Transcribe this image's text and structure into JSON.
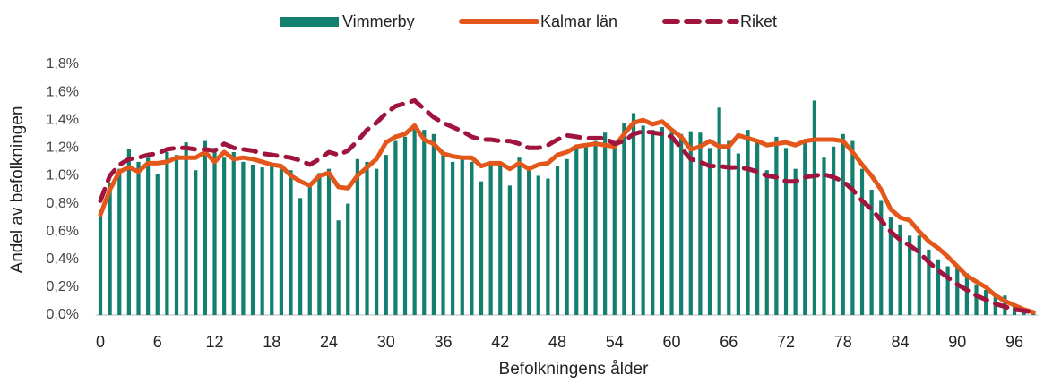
{
  "chart_data": {
    "type": "bar",
    "x_label": "Befolkningens ålder",
    "y_label": "Andel av befolkningen",
    "categories": [
      "0",
      null,
      null,
      null,
      null,
      null,
      "6",
      null,
      null,
      null,
      null,
      null,
      "12",
      null,
      null,
      null,
      null,
      null,
      "18",
      null,
      null,
      null,
      null,
      null,
      "24",
      null,
      null,
      null,
      null,
      null,
      "30",
      null,
      null,
      null,
      null,
      null,
      "36",
      null,
      null,
      null,
      null,
      null,
      "42",
      null,
      null,
      null,
      null,
      null,
      "48",
      null,
      null,
      null,
      null,
      null,
      "54",
      null,
      null,
      null,
      null,
      null,
      "60",
      null,
      null,
      null,
      null,
      null,
      "66",
      null,
      null,
      null,
      null,
      null,
      "72",
      null,
      null,
      null,
      null,
      null,
      "78",
      null,
      null,
      null,
      null,
      null,
      "84",
      null,
      null,
      null,
      null,
      null,
      "90",
      null,
      null,
      null,
      null,
      null,
      "96",
      null,
      null
    ],
    "ylim": [
      0,
      1.8
    ],
    "yticks": [
      {
        "value": 0,
        "label": "0,0%"
      },
      {
        "value": 0.2,
        "label": "0,2%"
      },
      {
        "value": 0.4,
        "label": "0,4%"
      },
      {
        "value": 0.6,
        "label": "0,6%"
      },
      {
        "value": 0.8,
        "label": "0,8%"
      },
      {
        "value": 1.0,
        "label": "1,0%"
      },
      {
        "value": 1.2,
        "label": "1,2%"
      },
      {
        "value": 1.4,
        "label": "1,4%"
      },
      {
        "value": 1.6,
        "label": "1,6%"
      },
      {
        "value": 1.8,
        "label": "1,8%"
      }
    ],
    "grid": false,
    "legend": "top",
    "series": [
      {
        "name": "Vimmerby",
        "kind": "bar",
        "color": "#137f6f",
        "values": [
          0.75,
          0.95,
          1.05,
          1.19,
          1.1,
          1.13,
          1.01,
          1.17,
          1.15,
          1.24,
          1.04,
          1.25,
          1.2,
          1.13,
          1.17,
          1.1,
          1.08,
          1.06,
          1.09,
          1.05,
          1.04,
          0.84,
          0.92,
          1.02,
          1.05,
          0.68,
          0.8,
          1.12,
          1.1,
          1.05,
          1.15,
          1.25,
          1.28,
          1.35,
          1.33,
          1.3,
          1.15,
          1.1,
          1.12,
          1.1,
          0.96,
          1.08,
          1.1,
          0.93,
          1.13,
          1.05,
          1.0,
          0.98,
          1.07,
          1.12,
          1.2,
          1.22,
          1.25,
          1.31,
          1.25,
          1.38,
          1.45,
          1.36,
          1.33,
          1.35,
          1.31,
          1.3,
          1.32,
          1.31,
          1.2,
          1.49,
          1.25,
          1.16,
          1.33,
          1.24,
          1.04,
          1.28,
          1.2,
          1.05,
          1.25,
          1.54,
          1.13,
          1.21,
          1.3,
          1.25,
          1.05,
          0.9,
          0.82,
          0.7,
          0.65,
          0.57,
          0.57,
          0.47,
          0.4,
          0.35,
          0.36,
          0.3,
          0.22,
          0.18,
          0.16,
          0.14,
          0.07,
          0.04,
          0.02
        ]
      },
      {
        "name": "Kalmar län",
        "kind": "line",
        "style": "solid",
        "color": "#e4571b",
        "values": [
          0.72,
          0.9,
          1.03,
          1.06,
          1.03,
          1.09,
          1.09,
          1.1,
          1.13,
          1.13,
          1.13,
          1.17,
          1.1,
          1.17,
          1.12,
          1.13,
          1.12,
          1.1,
          1.08,
          1.07,
          1.0,
          0.96,
          0.93,
          1.0,
          1.02,
          0.92,
          0.91,
          1.0,
          1.06,
          1.12,
          1.24,
          1.28,
          1.3,
          1.36,
          1.26,
          1.23,
          1.16,
          1.14,
          1.13,
          1.13,
          1.07,
          1.09,
          1.09,
          1.05,
          1.09,
          1.05,
          1.08,
          1.09,
          1.15,
          1.17,
          1.21,
          1.22,
          1.23,
          1.22,
          1.21,
          1.3,
          1.38,
          1.4,
          1.37,
          1.39,
          1.33,
          1.28,
          1.19,
          1.21,
          1.25,
          1.21,
          1.21,
          1.29,
          1.27,
          1.25,
          1.22,
          1.23,
          1.24,
          1.22,
          1.25,
          1.26,
          1.26,
          1.26,
          1.25,
          1.17,
          1.08,
          1.0,
          0.9,
          0.76,
          0.7,
          0.68,
          0.6,
          0.53,
          0.48,
          0.42,
          0.35,
          0.28,
          0.24,
          0.2,
          0.14,
          0.1,
          0.07,
          0.04,
          0.02
        ]
      },
      {
        "name": "Riket",
        "kind": "line",
        "style": "dashed",
        "color": "#a0153e",
        "values": [
          0.82,
          1.0,
          1.08,
          1.12,
          1.13,
          1.15,
          1.16,
          1.19,
          1.2,
          1.2,
          1.19,
          1.19,
          1.18,
          1.23,
          1.2,
          1.19,
          1.18,
          1.16,
          1.15,
          1.14,
          1.13,
          1.11,
          1.08,
          1.12,
          1.17,
          1.15,
          1.18,
          1.25,
          1.33,
          1.38,
          1.45,
          1.5,
          1.52,
          1.54,
          1.48,
          1.42,
          1.38,
          1.35,
          1.32,
          1.28,
          1.26,
          1.26,
          1.25,
          1.25,
          1.23,
          1.2,
          1.2,
          1.22,
          1.26,
          1.29,
          1.28,
          1.27,
          1.27,
          1.27,
          1.23,
          1.25,
          1.3,
          1.32,
          1.31,
          1.3,
          1.28,
          1.2,
          1.12,
          1.1,
          1.07,
          1.07,
          1.06,
          1.06,
          1.05,
          1.03,
          1.0,
          0.99,
          0.96,
          0.96,
          0.99,
          1.0,
          1.01,
          0.99,
          0.96,
          0.9,
          0.82,
          0.76,
          0.68,
          0.6,
          0.54,
          0.5,
          0.45,
          0.38,
          0.32,
          0.27,
          0.22,
          0.18,
          0.14,
          0.11,
          0.08,
          0.06,
          0.04,
          0.03,
          0.02
        ]
      }
    ]
  }
}
